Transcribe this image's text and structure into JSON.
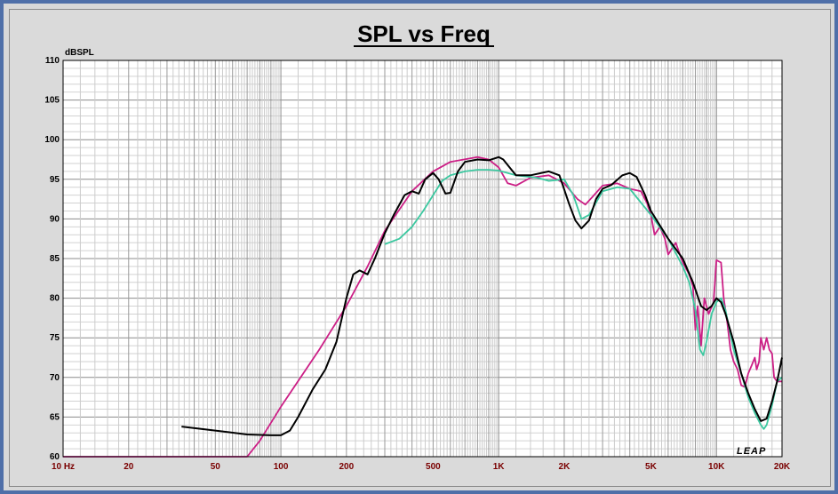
{
  "chart_data": {
    "type": "line",
    "title": "SPL vs Freq",
    "ylabel": "dBSPL",
    "xscale": "log",
    "xlim": [
      10,
      20000
    ],
    "ylim": [
      60,
      110
    ],
    "grid": true,
    "x_ticks": [
      {
        "value": 10,
        "label": "10 Hz"
      },
      {
        "value": 20,
        "label": "20"
      },
      {
        "value": 50,
        "label": "50"
      },
      {
        "value": 100,
        "label": "100"
      },
      {
        "value": 200,
        "label": "200"
      },
      {
        "value": 500,
        "label": "500"
      },
      {
        "value": 1000,
        "label": "1K"
      },
      {
        "value": 2000,
        "label": "2K"
      },
      {
        "value": 5000,
        "label": "5K"
      },
      {
        "value": 10000,
        "label": "10K"
      },
      {
        "value": 20000,
        "label": "20K"
      }
    ],
    "y_ticks": [
      60,
      65,
      70,
      75,
      80,
      85,
      90,
      95,
      100,
      105,
      110
    ],
    "series": [
      {
        "color": "#cc1f86",
        "points": [
          [
            10,
            60
          ],
          [
            70,
            60
          ],
          [
            80,
            62
          ],
          [
            100,
            66.3
          ],
          [
            150,
            73.5
          ],
          [
            200,
            79
          ],
          [
            250,
            84
          ],
          [
            300,
            88.5
          ],
          [
            400,
            93.5
          ],
          [
            500,
            96
          ],
          [
            600,
            97.2
          ],
          [
            800,
            97.8
          ],
          [
            900,
            97.5
          ],
          [
            1000,
            96.5
          ],
          [
            1100,
            94.5
          ],
          [
            1200,
            94.2
          ],
          [
            1400,
            95.2
          ],
          [
            1700,
            95.5
          ],
          [
            2000,
            94.5
          ],
          [
            2300,
            92.5
          ],
          [
            2500,
            91.8
          ],
          [
            2700,
            92.8
          ],
          [
            3000,
            94.2
          ],
          [
            3500,
            94.5
          ],
          [
            4000,
            93.8
          ],
          [
            4500,
            93.5
          ],
          [
            4800,
            92
          ],
          [
            5000,
            90.5
          ],
          [
            5200,
            88
          ],
          [
            5500,
            89
          ],
          [
            5800,
            87.5
          ],
          [
            6000,
            85.5
          ],
          [
            6500,
            87
          ],
          [
            7000,
            84.5
          ],
          [
            7500,
            83
          ],
          [
            7800,
            81.5
          ],
          [
            8000,
            76
          ],
          [
            8200,
            79
          ],
          [
            8500,
            74
          ],
          [
            8800,
            80
          ],
          [
            9200,
            78
          ],
          [
            9700,
            79.5
          ],
          [
            10000,
            84.8
          ],
          [
            10500,
            84.5
          ],
          [
            10800,
            80
          ],
          [
            11200,
            77
          ],
          [
            11600,
            73.5
          ],
          [
            12000,
            72
          ],
          [
            12500,
            71
          ],
          [
            13000,
            69
          ],
          [
            13500,
            68.8
          ],
          [
            14000,
            70.5
          ],
          [
            14500,
            71.5
          ],
          [
            15000,
            72.5
          ],
          [
            15300,
            71
          ],
          [
            15700,
            72
          ],
          [
            16000,
            75
          ],
          [
            16500,
            73.5
          ],
          [
            17000,
            75
          ],
          [
            17500,
            73.5
          ],
          [
            18000,
            73
          ],
          [
            18400,
            70
          ],
          [
            19000,
            69.5
          ],
          [
            20000,
            69.5
          ]
        ]
      },
      {
        "color": "#3cc8a0",
        "points": [
          [
            300,
            86.8
          ],
          [
            350,
            87.5
          ],
          [
            400,
            89
          ],
          [
            450,
            91
          ],
          [
            500,
            93
          ],
          [
            550,
            94.8
          ],
          [
            600,
            95.5
          ],
          [
            700,
            96
          ],
          [
            800,
            96.2
          ],
          [
            900,
            96.2
          ],
          [
            1000,
            96.1
          ],
          [
            1200,
            95.5
          ],
          [
            1500,
            95.2
          ],
          [
            1700,
            94.8
          ],
          [
            2000,
            95
          ],
          [
            2200,
            93
          ],
          [
            2400,
            90
          ],
          [
            2600,
            90.5
          ],
          [
            3000,
            93.5
          ],
          [
            3500,
            94
          ],
          [
            4000,
            93.8
          ],
          [
            5000,
            90.5
          ],
          [
            6000,
            87.5
          ],
          [
            7000,
            84
          ],
          [
            7500,
            82
          ],
          [
            8000,
            78.5
          ],
          [
            8400,
            73.5
          ],
          [
            8700,
            72.8
          ],
          [
            9000,
            74.5
          ],
          [
            9500,
            78
          ],
          [
            10000,
            79.5
          ],
          [
            10500,
            80
          ],
          [
            11000,
            78.5
          ],
          [
            12000,
            73.5
          ],
          [
            13000,
            70.5
          ],
          [
            14000,
            67.5
          ],
          [
            15000,
            65.5
          ],
          [
            16000,
            64
          ],
          [
            16500,
            63.5
          ],
          [
            17000,
            64
          ],
          [
            18000,
            66.5
          ],
          [
            19000,
            69.5
          ],
          [
            20000,
            70
          ]
        ]
      },
      {
        "color": "#000000",
        "points": [
          [
            35,
            63.8
          ],
          [
            50,
            63.3
          ],
          [
            70,
            62.8
          ],
          [
            90,
            62.7
          ],
          [
            100,
            62.7
          ],
          [
            110,
            63.3
          ],
          [
            120,
            65
          ],
          [
            140,
            68.5
          ],
          [
            160,
            71
          ],
          [
            180,
            74.5
          ],
          [
            200,
            80
          ],
          [
            215,
            83
          ],
          [
            230,
            83.5
          ],
          [
            250,
            83
          ],
          [
            270,
            85
          ],
          [
            300,
            88.2
          ],
          [
            330,
            90.5
          ],
          [
            370,
            93
          ],
          [
            400,
            93.5
          ],
          [
            430,
            93.2
          ],
          [
            460,
            95
          ],
          [
            500,
            95.8
          ],
          [
            530,
            95
          ],
          [
            570,
            93.2
          ],
          [
            600,
            93.3
          ],
          [
            650,
            96
          ],
          [
            700,
            97.2
          ],
          [
            800,
            97.5
          ],
          [
            900,
            97.4
          ],
          [
            1000,
            97.8
          ],
          [
            1050,
            97.5
          ],
          [
            1100,
            96.8
          ],
          [
            1200,
            95.5
          ],
          [
            1400,
            95.5
          ],
          [
            1700,
            96
          ],
          [
            1900,
            95.5
          ],
          [
            2100,
            92
          ],
          [
            2250,
            89.8
          ],
          [
            2400,
            88.8
          ],
          [
            2600,
            89.8
          ],
          [
            2800,
            92.5
          ],
          [
            3000,
            93.8
          ],
          [
            3300,
            94.3
          ],
          [
            3700,
            95.5
          ],
          [
            4000,
            95.8
          ],
          [
            4300,
            95.3
          ],
          [
            4700,
            93
          ],
          [
            5000,
            91
          ],
          [
            6000,
            87.5
          ],
          [
            7000,
            85
          ],
          [
            7800,
            82
          ],
          [
            8500,
            79
          ],
          [
            9000,
            78.5
          ],
          [
            9500,
            79
          ],
          [
            10000,
            80
          ],
          [
            10500,
            79.5
          ],
          [
            11000,
            78
          ],
          [
            12000,
            74.5
          ],
          [
            13000,
            70.5
          ],
          [
            14000,
            68
          ],
          [
            15000,
            66
          ],
          [
            16000,
            64.5
          ],
          [
            17000,
            64.8
          ],
          [
            18000,
            67
          ],
          [
            19000,
            69.5
          ],
          [
            20000,
            72.5
          ]
        ]
      }
    ]
  },
  "logo": "LEAP"
}
